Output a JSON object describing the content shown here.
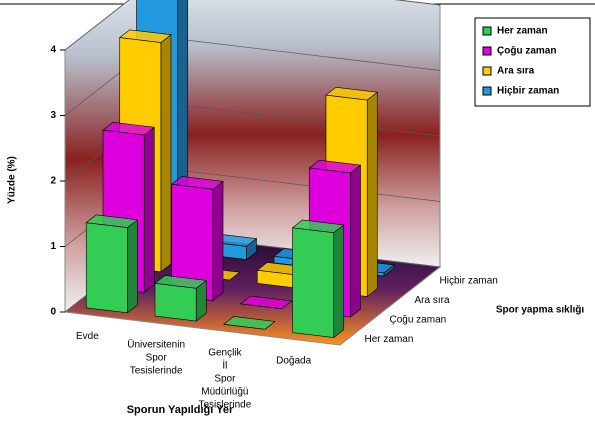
{
  "chart_data": {
    "type": "bar3d",
    "xlabel": "Sporun Yapıldığı Yer",
    "ylabel": "Yüzde (%)",
    "zlabel": "Spor yapma sıklığı",
    "categories": [
      "Evde",
      "Üniversitenin Spor Tesislerinde",
      "Gençlik İl Spor Müdürlüğü Tesislerinde",
      "Doğada"
    ],
    "series": [
      {
        "name": "Her zaman",
        "color": "#33cc55",
        "values": [
          1.3,
          0.5,
          0,
          1.6
        ]
      },
      {
        "name": "Çoğu zaman",
        "color": "#dd00dd",
        "values": [
          2.4,
          1.7,
          0,
          2.2
        ]
      },
      {
        "name": "Ara sıra",
        "color": "#ffcc00",
        "values": [
          3.5,
          0,
          0.2,
          3.0
        ]
      },
      {
        "name": "Hiçbir zaman",
        "color": "#2299dd",
        "values": [
          4.0,
          0.2,
          0.1,
          0.05
        ]
      }
    ],
    "ylim": [
      0,
      4
    ],
    "yticks": [
      0,
      1,
      2,
      3,
      4
    ],
    "grid": true,
    "legend": "top-right"
  }
}
